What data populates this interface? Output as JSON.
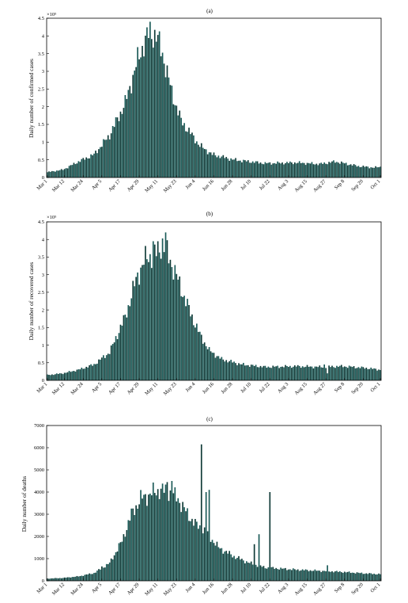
{
  "chart_data": [
    {
      "type": "bar",
      "title": "(a)",
      "ylabel": "Daily number of confirmed cases",
      "scale_label": "×10⁵",
      "ylim": [
        0,
        450000
      ],
      "yticks": [
        0,
        50000,
        100000,
        150000,
        200000,
        250000,
        300000,
        350000,
        400000,
        450000
      ],
      "ytick_labels": [
        "0",
        "0.5",
        "1",
        "1.5",
        "2",
        "2.5",
        "3",
        "3.5",
        "4",
        "4.5"
      ],
      "x_tick_labels": [
        "Mar 1",
        "Mar 12",
        "Mar 24",
        "Apr 5",
        "Apr 17",
        "Apr 29",
        "May 11",
        "May 23",
        "Jun 4",
        "Jun 16",
        "Jun 28",
        "Jul 10",
        "Jul 22",
        "Aug 3",
        "Aug 15",
        "Aug 27",
        "Sep 8",
        "Sep 20",
        "Oct 1"
      ],
      "x_tick_days": [
        0,
        11,
        23,
        35,
        47,
        59,
        71,
        83,
        95,
        107,
        119,
        131,
        143,
        155,
        167,
        179,
        191,
        203,
        214
      ],
      "anchors": [
        [
          0,
          15000
        ],
        [
          10,
          22000
        ],
        [
          20,
          45000
        ],
        [
          30,
          65000
        ],
        [
          40,
          120000
        ],
        [
          50,
          210000
        ],
        [
          58,
          330000
        ],
        [
          62,
          380000
        ],
        [
          66,
          410000
        ],
        [
          70,
          400000
        ],
        [
          74,
          350000
        ],
        [
          80,
          240000
        ],
        [
          86,
          160000
        ],
        [
          92,
          125000
        ],
        [
          98,
          90000
        ],
        [
          106,
          65000
        ],
        [
          120,
          50000
        ],
        [
          140,
          40000
        ],
        [
          160,
          42000
        ],
        [
          175,
          38000
        ],
        [
          185,
          45000
        ],
        [
          200,
          32000
        ],
        [
          210,
          28000
        ],
        [
          214,
          30000
        ]
      ],
      "spikes": []
    },
    {
      "type": "bar",
      "title": "(b)",
      "ylabel": "Daily number of recovered cases",
      "scale_label": "×10⁵",
      "ylim": [
        0,
        450000
      ],
      "yticks": [
        0,
        50000,
        100000,
        150000,
        200000,
        250000,
        300000,
        350000,
        400000,
        450000
      ],
      "ytick_labels": [
        "0",
        "0.5",
        "1",
        "1.5",
        "2",
        "2.5",
        "3",
        "3.5",
        "4",
        "4.5"
      ],
      "x_tick_labels": [
        "Mar 1",
        "Mar 12",
        "Mar 24",
        "Apr 5",
        "Apr 17",
        "Apr 29",
        "May 11",
        "May 23",
        "Jun 4",
        "Jun 16",
        "Jun 28",
        "Jul 10",
        "Jul 22",
        "Aug 3",
        "Aug 15",
        "Aug 27",
        "Sep 8",
        "Sep 20",
        "Oct 1"
      ],
      "x_tick_days": [
        0,
        11,
        23,
        35,
        47,
        59,
        71,
        83,
        95,
        107,
        119,
        131,
        143,
        155,
        167,
        179,
        191,
        203,
        214
      ],
      "anchors": [
        [
          0,
          15000
        ],
        [
          10,
          20000
        ],
        [
          20,
          30000
        ],
        [
          30,
          45000
        ],
        [
          40,
          80000
        ],
        [
          50,
          180000
        ],
        [
          58,
          300000
        ],
        [
          64,
          350000
        ],
        [
          70,
          360000
        ],
        [
          74,
          390000
        ],
        [
          80,
          330000
        ],
        [
          86,
          260000
        ],
        [
          92,
          190000
        ],
        [
          98,
          130000
        ],
        [
          104,
          85000
        ],
        [
          112,
          60000
        ],
        [
          125,
          45000
        ],
        [
          140,
          38000
        ],
        [
          160,
          40000
        ],
        [
          175,
          38000
        ],
        [
          190,
          40000
        ],
        [
          205,
          35000
        ],
        [
          214,
          30000
        ]
      ],
      "spikes": [
        [
          68,
          395000
        ],
        [
          76,
          420000
        ],
        [
          178,
          45000
        ],
        [
          180,
          20000
        ]
      ]
    },
    {
      "type": "bar",
      "title": "(c)",
      "ylabel": "Daily number of deaths",
      "scale_label": "",
      "ylim": [
        0,
        7000
      ],
      "yticks": [
        0,
        1000,
        2000,
        3000,
        4000,
        5000,
        6000,
        7000
      ],
      "ytick_labels": [
        "0",
        "1000",
        "2000",
        "3000",
        "4000",
        "5000",
        "6000",
        "7000"
      ],
      "x_tick_labels": [
        "Mar 1",
        "Mar 12",
        "Mar 24",
        "Apr 5",
        "Apr 17",
        "Apr 29",
        "May 11",
        "May 23",
        "Jun 4",
        "Jun 16",
        "Jun 28",
        "Jul 10",
        "Jul 22",
        "Aug 3",
        "Aug 15",
        "Aug 27",
        "Sep 8",
        "Sep 20",
        "Oct 1"
      ],
      "x_tick_days": [
        0,
        11,
        23,
        35,
        47,
        59,
        71,
        83,
        95,
        107,
        119,
        131,
        143,
        155,
        167,
        179,
        191,
        203,
        214
      ],
      "anchors": [
        [
          0,
          100
        ],
        [
          10,
          130
        ],
        [
          20,
          200
        ],
        [
          30,
          350
        ],
        [
          40,
          800
        ],
        [
          48,
          1800
        ],
        [
          54,
          3000
        ],
        [
          60,
          3700
        ],
        [
          66,
          3900
        ],
        [
          72,
          4100
        ],
        [
          78,
          4000
        ],
        [
          84,
          3700
        ],
        [
          90,
          3000
        ],
        [
          96,
          2500
        ],
        [
          102,
          2200
        ],
        [
          110,
          1500
        ],
        [
          120,
          1100
        ],
        [
          130,
          800
        ],
        [
          140,
          600
        ],
        [
          150,
          550
        ],
        [
          160,
          500
        ],
        [
          175,
          450
        ],
        [
          190,
          400
        ],
        [
          205,
          330
        ],
        [
          214,
          300
        ]
      ],
      "spikes": [
        [
          35,
          650
        ],
        [
          77,
          4450
        ],
        [
          80,
          4500
        ],
        [
          99,
          6150
        ],
        [
          102,
          4000
        ],
        [
          104,
          4100
        ],
        [
          133,
          1650
        ],
        [
          136,
          2100
        ],
        [
          143,
          4000
        ],
        [
          180,
          700
        ]
      ]
    }
  ]
}
